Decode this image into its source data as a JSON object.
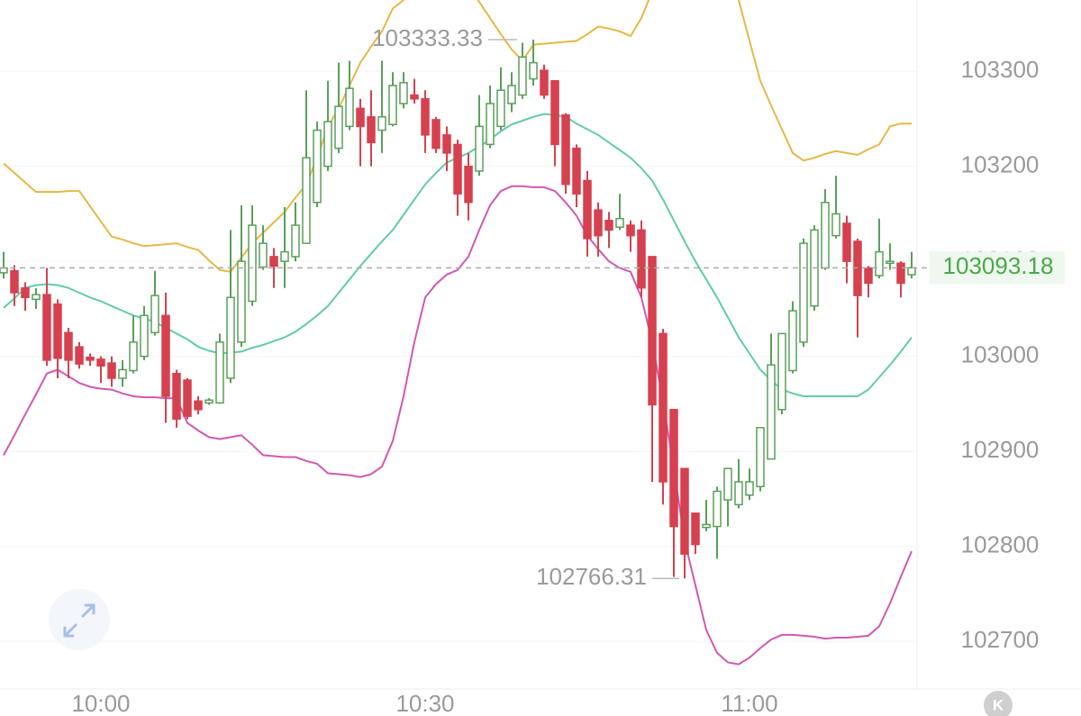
{
  "chart_data": {
    "type": "candlestick",
    "x": [
      591,
      592,
      593,
      594,
      595,
      596,
      597,
      598,
      599,
      600,
      601,
      602,
      603,
      604,
      605,
      606,
      607,
      608,
      609,
      610,
      611,
      612,
      613,
      614,
      615,
      616,
      617,
      618,
      619,
      620,
      621,
      622,
      623,
      624,
      625,
      626,
      627,
      628,
      629,
      630,
      631,
      632,
      633,
      634,
      635,
      636,
      637,
      638,
      639,
      640,
      641,
      642,
      643,
      644,
      645,
      646,
      647,
      648,
      649,
      650,
      651,
      652,
      653,
      654,
      655,
      656,
      657,
      658,
      659,
      660,
      661,
      662,
      663,
      664,
      665,
      666,
      667,
      668,
      669,
      670,
      671,
      672,
      673,
      674,
      675
    ],
    "open": [
      103088,
      103090,
      103072,
      103060,
      103065,
      103055,
      103025,
      103010,
      102999,
      102997,
      102993,
      102977,
      102985,
      103000,
      103025,
      103043,
      102982,
      102975,
      102953,
      102951,
      102951,
      102977,
      103015,
      103058,
      103094,
      103105,
      103100,
      103105,
      103119,
      103162,
      103200,
      103219,
      103242,
      103261,
      103252,
      103238,
      103244,
      103266,
      103275,
      103271,
      103249,
      103233,
      103223,
      103200,
      103195,
      103223,
      103242,
      103266,
      103275,
      103292,
      103301,
      103290,
      103254,
      103219,
      103185,
      103154,
      103143,
      103136,
      103138,
      103133,
      103105,
      103024,
      102944,
      102882,
      102835,
      102820,
      102821,
      102849,
      102844,
      102854,
      102863,
      102892,
      102944,
      102985,
      103015,
      103053,
      103093,
      103127,
      103140,
      103121,
      103093,
      103085,
      103098,
      103098,
      103086
    ],
    "high": [
      103110,
      103096,
      103078,
      103072,
      103093,
      103060,
      103030,
      103015,
      103003,
      103000,
      103000,
      102996,
      103043,
      103053,
      103090,
      103067,
      102986,
      102977,
      102958,
      102956,
      103024,
      103133,
      103159,
      103159,
      103138,
      103114,
      103157,
      103162,
      103280,
      103247,
      103290,
      103309,
      103311,
      103271,
      103280,
      103311,
      103299,
      103299,
      103292,
      103280,
      103252,
      103242,
      103228,
      103214,
      103275,
      103285,
      103304,
      103299,
      103330,
      103333.33,
      103307,
      103290,
      103256,
      103223,
      103195,
      103162,
      103152,
      103171,
      103143,
      103143,
      103105,
      103029,
      102944,
      102882,
      102835,
      102849,
      102863,
      102882,
      102892,
      102882,
      102925,
      103024,
      103024,
      103058,
      103124,
      103138,
      103176,
      103190,
      103148,
      103124,
      103095,
      103145,
      103119,
      103100,
      103110
    ],
    "low": [
      103082,
      103053,
      103048,
      103050,
      102990,
      102977,
      102977,
      102987,
      102990,
      102972,
      102968,
      102968,
      102982,
      102996,
      103022,
      102930,
      102925,
      102934,
      102939,
      102949,
      102950,
      102972,
      103010,
      103053,
      103091,
      103072,
      103072,
      103100,
      103119,
      103157,
      103195,
      103214,
      103238,
      103200,
      103200,
      103214,
      103242,
      103261,
      103266,
      103214,
      103214,
      103195,
      103148,
      103143,
      103190,
      103219,
      103238,
      103257,
      103271,
      103285,
      103271,
      103200,
      103171,
      103157,
      103105,
      103105,
      103114,
      103133,
      103110,
      103062,
      102868,
      102844,
      102768,
      102766.31,
      102792,
      102816,
      102787,
      102821,
      102840,
      102849,
      102858,
      102892,
      102939,
      102982,
      103010,
      103048,
      103091,
      103124,
      103077,
      103020,
      103062,
      103082,
      103091,
      103062,
      103082
    ],
    "close": [
      103093,
      103067,
      103062,
      103065,
      102996,
      102998,
      102996,
      102992,
      102996,
      102990,
      102977,
      102986,
      103015,
      103043,
      103064,
      102958,
      102934,
      102937,
      102944,
      102954,
      103015,
      103062,
      103100,
      103138,
      103119,
      103095,
      103110,
      103138,
      103209,
      103238,
      103247,
      103263,
      103282,
      103242,
      103225,
      103252,
      103285,
      103288,
      103271,
      103233,
      103219,
      103214,
      103171,
      103162,
      103242,
      103266,
      103280,
      103285,
      103315,
      103309,
      103275,
      103223,
      103181,
      103171,
      103124,
      103127,
      103133,
      103145,
      103127,
      103072,
      102949,
      102868,
      102821,
      102792,
      102802,
      102823,
      102858,
      102882,
      102868,
      102868,
      102925,
      102991,
      103024,
      103048,
      103119,
      103133,
      103162,
      103150,
      103100,
      103064,
      103077,
      103110,
      103100,
      103077,
      103093.18
    ],
    "up_color": "#5a9f5a",
    "down_color": "#d6414f",
    "overlays": [
      {
        "color": "#e6b845",
        "values": [
          103203,
          103193,
          103183,
          103173,
          103173,
          103173,
          103174,
          103174,
          103158,
          103142,
          103126,
          103123,
          103119,
          103116,
          103117,
          103118,
          103119,
          103115,
          103112,
          103101,
          103091,
          103089,
          103104,
          103119,
          103130,
          103141,
          103152,
          103167,
          103181,
          103209,
          103242,
          103261,
          103285,
          103309,
          103326,
          103342,
          103366,
          103375,
          103384,
          103389,
          103394,
          103392,
          103391,
          103389,
          103373,
          103356,
          103339,
          103323,
          103311,
          103328,
          103329,
          103330,
          103331,
          103332,
          103339,
          103347,
          103345,
          103342,
          103337,
          103356,
          103384,
          103399,
          103413,
          103418,
          103418,
          103413,
          103403,
          103394,
          103375,
          103332,
          103290,
          103264,
          103239,
          103214,
          103206,
          103209,
          103213,
          103216,
          103214,
          103212,
          103218,
          103223,
          103242,
          103245,
          103245
        ]
      },
      {
        "color": "#62cbaa",
        "values": [
          103051,
          103061,
          103072,
          103075,
          103076,
          103075,
          103072,
          103067,
          103062,
          103058,
          103053,
          103048,
          103043,
          103040,
          103036,
          103030,
          103024,
          103018,
          103010,
          103006,
          103003,
          103004,
          103005,
          103009,
          103012,
          103016,
          103020,
          103026,
          103034,
          103043,
          103053,
          103067,
          103081,
          103095,
          103108,
          103121,
          103133,
          103149,
          103165,
          103181,
          103193,
          103204,
          103209,
          103214,
          103221,
          103228,
          103237,
          103244,
          103248,
          103252,
          103255,
          103254,
          103252,
          103245,
          103239,
          103233,
          103225,
          103217,
          103209,
          103198,
          103185,
          103165,
          103143,
          103121,
          103100,
          103081,
          103062,
          103041,
          103020,
          103003,
          102986,
          102975,
          102965,
          102961,
          102958,
          102958,
          102958,
          102958,
          102958,
          102958,
          102965,
          102978,
          102991,
          103005,
          103020
        ]
      },
      {
        "color": "#d257b3",
        "values": [
          102896,
          102917,
          102939,
          102960,
          102982,
          102986,
          102979,
          102972,
          102968,
          102966,
          102965,
          102961,
          102958,
          102957,
          102957,
          102956,
          102956,
          102930,
          102922,
          102915,
          102913,
          102915,
          102917,
          102907,
          102896,
          102895,
          102894,
          102894,
          102890,
          102887,
          102877,
          102876,
          102875,
          102873,
          102876,
          102884,
          102911,
          102958,
          103015,
          103062,
          103076,
          103086,
          103091,
          103105,
          103133,
          103159,
          103174,
          103179,
          103179,
          103178,
          103178,
          103174,
          103162,
          103148,
          103127,
          103113,
          103100,
          103093,
          103089,
          103062,
          103015,
          102953,
          102882,
          102806,
          102759,
          102712,
          102688,
          102678,
          102676,
          102683,
          102693,
          102702,
          102707,
          102707,
          102706,
          102705,
          102703,
          102704,
          102704,
          102705,
          102706,
          102716,
          102740,
          102768,
          102795
        ]
      }
    ],
    "xlim": [
      590.667,
      675.5
    ],
    "xticks": [
      {
        "value": 600,
        "label": "10:00"
      },
      {
        "value": 630,
        "label": "10:30"
      },
      {
        "value": 660,
        "label": "11:00"
      }
    ],
    "ylim": [
      102650,
      103375
    ],
    "yticks": [
      102700,
      102800,
      102900,
      103000,
      103100,
      103200,
      103300
    ],
    "grid": true,
    "high_index": 49,
    "low_index": 63,
    "last_price_color": "#4aa84a",
    "k_button": "K"
  }
}
